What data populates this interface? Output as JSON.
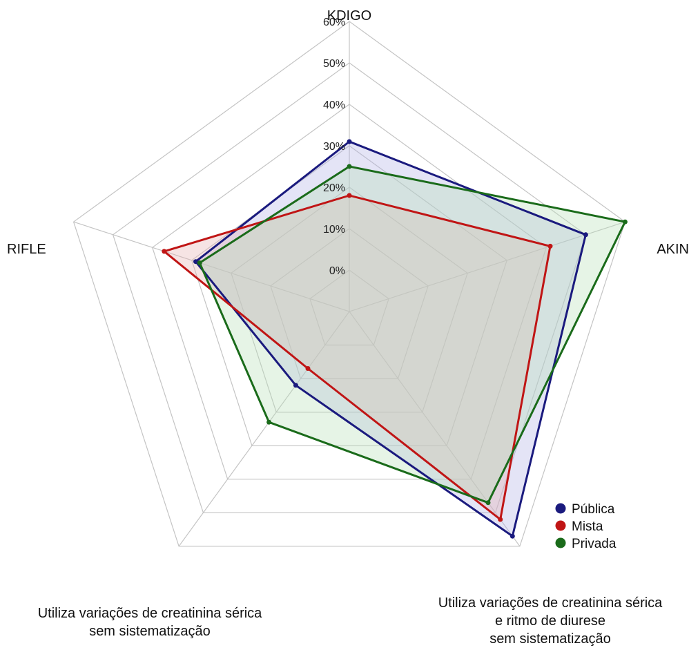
{
  "chart_data": {
    "type": "radar",
    "axes": [
      {
        "lines": [
          "KDIGO"
        ]
      },
      {
        "lines": [
          "AKIN"
        ]
      },
      {
        "lines": [
          "Utiliza variações de creatinina sérica",
          "e ritmo de diurese",
          "sem sistematização"
        ]
      },
      {
        "lines": [
          "Utiliza variações de creatinina sérica",
          "sem sistematização"
        ]
      },
      {
        "lines": [
          "RIFLE"
        ]
      }
    ],
    "rmin": 0,
    "rmax": 60,
    "ticks": [
      0,
      10,
      20,
      30,
      40,
      50,
      60
    ],
    "tick_labels": [
      "0%",
      "10%",
      "20%",
      "30%",
      "40%",
      "50%",
      "60%"
    ],
    "grid_rings": 7,
    "legend_position": "bottom-right",
    "series": [
      {
        "name": "Pública",
        "color": "#1a1a7e",
        "fill": "#b3b3e6",
        "values": [
          31,
          50,
          57,
          12,
          29
        ]
      },
      {
        "name": "Mista",
        "color": "#c01515",
        "fill": "#e6b3b3",
        "values": [
          18,
          41,
          52,
          7,
          37
        ]
      },
      {
        "name": "Privada",
        "color": "#1a6b1a",
        "fill": "#b8e0b8",
        "values": [
          25,
          60,
          47,
          23,
          28
        ]
      }
    ]
  }
}
